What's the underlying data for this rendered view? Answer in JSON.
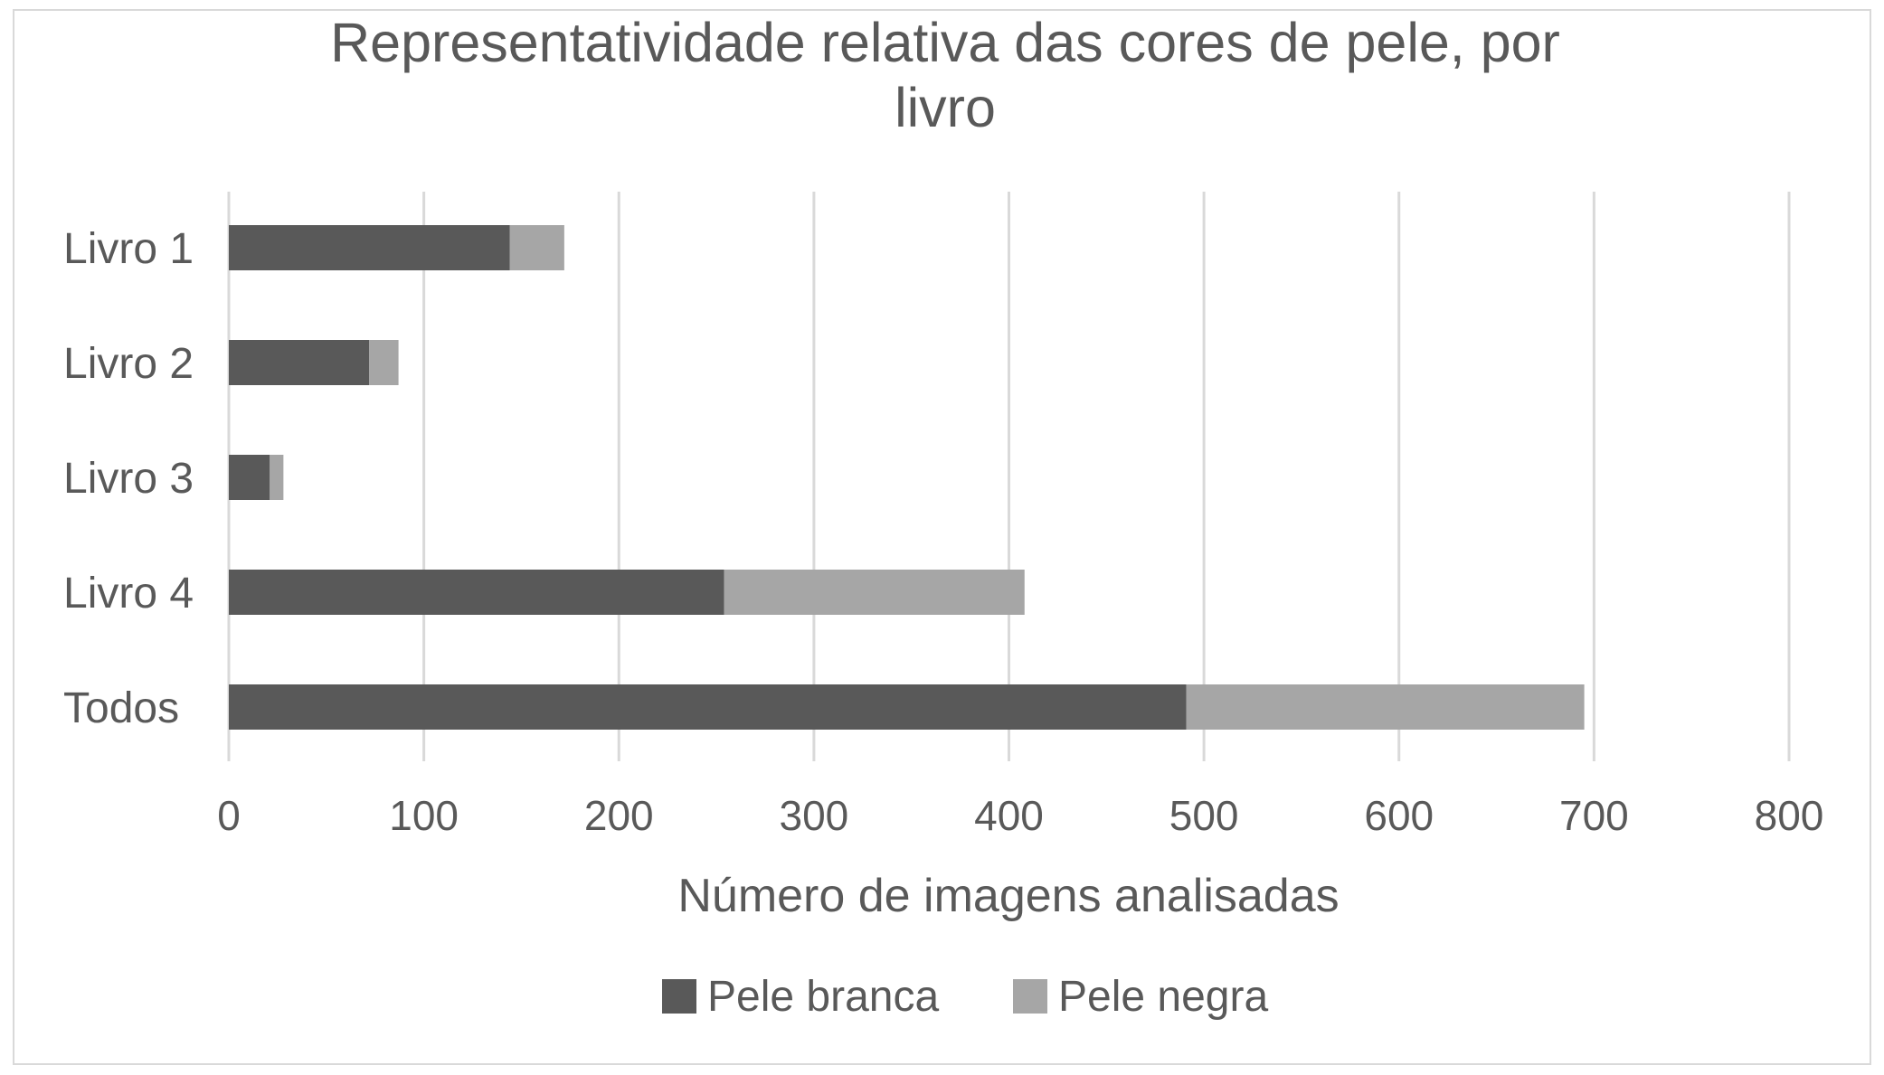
{
  "chart_data": {
    "type": "bar",
    "orientation": "horizontal",
    "stacked": true,
    "title_lines": [
      "Representatividade relativa das cores de pele, por",
      "livro"
    ],
    "title": "Representatividade relativa das cores de pele, por livro",
    "xlabel": "Número de imagens analisadas",
    "ylabel": "",
    "categories": [
      "Livro 1",
      "Livro 2",
      "Livro 3",
      "Livro 4",
      "Todos"
    ],
    "series": [
      {
        "name": "Pele branca",
        "color": "#595959",
        "values": [
          144,
          72,
          21,
          254,
          491
        ]
      },
      {
        "name": "Pele negra",
        "color": "#a6a6a6",
        "values": [
          28,
          15,
          7,
          154,
          204
        ]
      }
    ],
    "xlim": [
      0,
      800
    ],
    "xticks": [
      0,
      100,
      200,
      300,
      400,
      500,
      600,
      700,
      800
    ],
    "grid": true,
    "gridline_color": "#d9d9d9",
    "legend_position": "bottom"
  }
}
